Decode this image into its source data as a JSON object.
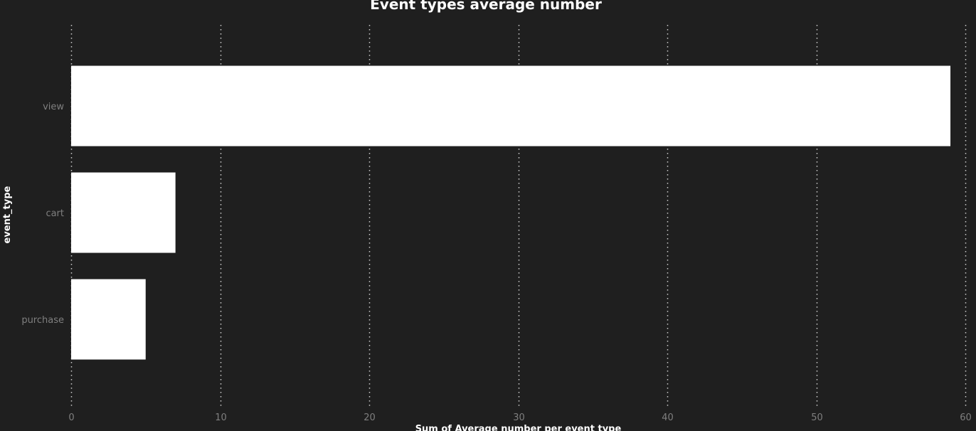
{
  "colors": {
    "background": "#1f1f1f",
    "bar": "#ffffff",
    "gridline": "#cfcfcf",
    "tick_label": "#7f7f7f",
    "title": "#ffffff"
  },
  "chart_data": {
    "type": "bar",
    "orientation": "horizontal",
    "title": "Event types average number",
    "xlabel": "Sum of Average number per event type",
    "ylabel": "event_type",
    "categories": [
      "view",
      "cart",
      "purchase"
    ],
    "values": [
      59,
      7,
      5
    ],
    "xlim": [
      0,
      60
    ],
    "x_ticks": [
      "0",
      "10",
      "20",
      "30",
      "40",
      "50",
      "60"
    ],
    "grid": "vertical dotted",
    "legend": "none"
  }
}
